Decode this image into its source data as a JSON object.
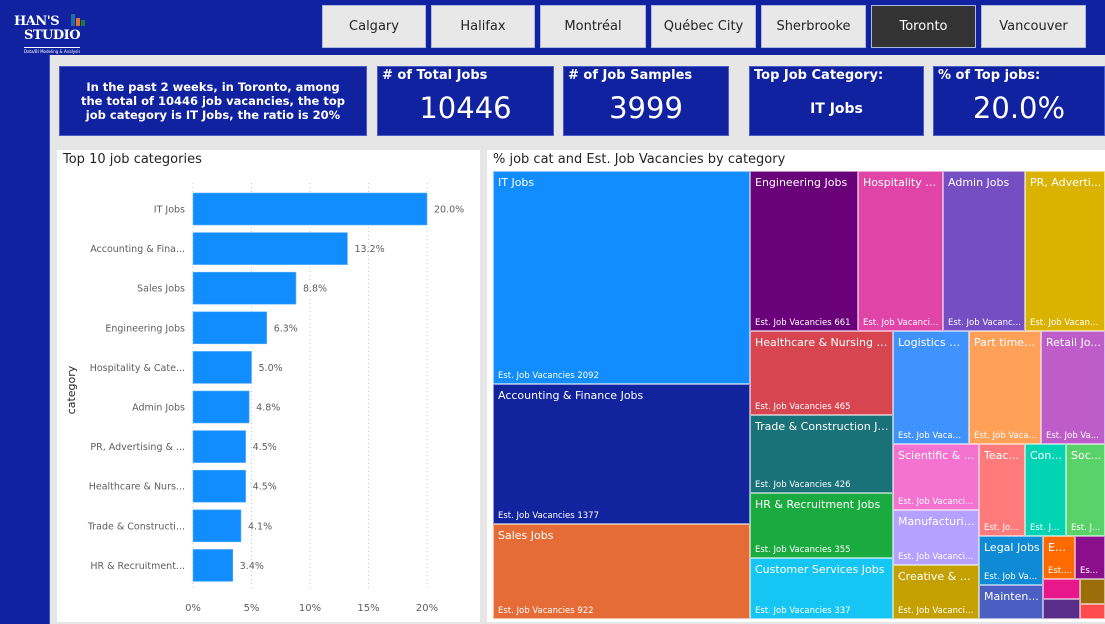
{
  "logo": {
    "line1": "HAN'S",
    "line2": "STUDIO",
    "tagline": "Data/BI Modeling & Analysis"
  },
  "cities": [
    {
      "label": "Calgary",
      "active": false
    },
    {
      "label": "Halifax",
      "active": false
    },
    {
      "label": "Montréal",
      "active": false
    },
    {
      "label": "Québec City",
      "active": false
    },
    {
      "label": "Sherbrooke",
      "active": false
    },
    {
      "label": "Toronto",
      "active": true
    },
    {
      "label": "Vancouver",
      "active": false
    }
  ],
  "kpis": {
    "summary": "In the past 2 weeks, in Toronto, among the total of 10446 job vacancies, the top job category is IT Jobs, the ratio is 20%",
    "total_jobs": {
      "title": "# of Total Jobs",
      "value": "10446"
    },
    "job_samples": {
      "title": "# of Job Samples",
      "value": "3999"
    },
    "top_category": {
      "title": "Top Job Category:",
      "value": "IT Jobs"
    },
    "top_pct": {
      "title": "% of Top jobs:",
      "value": "20.0%"
    }
  },
  "colors": {
    "brand_blue": "#1122a0",
    "bar_blue": "#118dff",
    "active_city": "#333333"
  },
  "chart_data": [
    {
      "type": "bar",
      "orientation": "horizontal",
      "title": "Top 10 job categories",
      "ylabel": "category",
      "xlabel": "",
      "categories": [
        "IT Jobs",
        "Accounting & Fina...",
        "Sales Jobs",
        "Engineering Jobs",
        "Hospitality & Cate...",
        "Admin Jobs",
        "PR, Advertising & ...",
        "Healthcare & Nurs...",
        "Trade & Constructi...",
        "HR & Recruitment..."
      ],
      "values": [
        20.0,
        13.2,
        8.8,
        6.3,
        5.0,
        4.8,
        4.5,
        4.5,
        4.1,
        3.4
      ],
      "value_labels": [
        "20.0%",
        "13.2%",
        "8.8%",
        "6.3%",
        "5.0%",
        "4.8%",
        "4.5%",
        "4.5%",
        "4.1%",
        "3.4%"
      ],
      "xticks": [
        "0%",
        "5%",
        "10%",
        "15%",
        "20%"
      ],
      "xlim": [
        0,
        22
      ],
      "grid": true,
      "color": "#118dff"
    },
    {
      "type": "treemap",
      "title": "% job cat and Est. Job Vacancies by category",
      "value_prefix": "Est. Job Vacancies",
      "tiles": [
        {
          "name": "IT Jobs",
          "value_label": "Est. Job Vacancies 2092",
          "value": 2092,
          "color": "#118dff"
        },
        {
          "name": "Accounting & Finance Jobs",
          "value_label": "Est. Job Vacancies 1377",
          "value": 1377,
          "color": "#12239e"
        },
        {
          "name": "Sales Jobs",
          "value_label": "Est. Job Vacancies 922",
          "value": 922,
          "color": "#e66c37"
        },
        {
          "name": "Engineering Jobs",
          "value_label": "Est. Job Vacancies 661",
          "value": 661,
          "color": "#6b007b"
        },
        {
          "name": "Hospitality &...",
          "value_label": "Est. Job Vacancie...",
          "value": null,
          "color": "#e044a7"
        },
        {
          "name": "Admin Jobs",
          "value_label": "Est. Job Vacanci...",
          "value": null,
          "color": "#744ec2"
        },
        {
          "name": "PR, Adverti...",
          "value_label": "Est. Job Vacanc...",
          "value": null,
          "color": "#d9b300"
        },
        {
          "name": "Healthcare & Nursing Jo...",
          "value_label": "Est. Job Vacancies 465",
          "value": 465,
          "color": "#d64550"
        },
        {
          "name": "Trade & Construction Jo...",
          "value_label": "Est. Job Vacancies 426",
          "value": 426,
          "color": "#197278"
        },
        {
          "name": "HR & Recruitment Jobs",
          "value_label": "Est. Job Vacancies 355",
          "value": 355,
          "color": "#1aab40"
        },
        {
          "name": "Customer Services Jobs",
          "value_label": "Est. Job Vacancies 337",
          "value": 337,
          "color": "#15c6f4"
        },
        {
          "name": "Logistics &...",
          "value_label": "Est. Job Vacan...",
          "value": null,
          "color": "#4092ff"
        },
        {
          "name": "Part time J...",
          "value_label": "Est. Job Vaca...",
          "value": null,
          "color": "#ffa058"
        },
        {
          "name": "Retail Jo...",
          "value_label": "Est. Job Va...",
          "value": null,
          "color": "#be5dc9"
        },
        {
          "name": "Scientific & ...",
          "value_label": "Est. Job Vacancie...",
          "value": null,
          "color": "#f472d0"
        },
        {
          "name": "Teac...",
          "value_label": "Est. Job...",
          "value": null,
          "color": "#ff7b7b"
        },
        {
          "name": "Con...",
          "value_label": "Est. Jo...",
          "value": null,
          "color": "#00d4b4"
        },
        {
          "name": "Soc...",
          "value_label": "Est. J...",
          "value": null,
          "color": "#5ad26a"
        },
        {
          "name": "Manufacturin...",
          "value_label": "Est. Job Vacancie...",
          "value": null,
          "color": "#b5a1ff"
        },
        {
          "name": "Creative & D...",
          "value_label": "Est. Job Vacancie...",
          "value": null,
          "color": "#c4a000"
        },
        {
          "name": "Legal Jobs",
          "value_label": "Est. Job Vac...",
          "value": null,
          "color": "#0f8ad4"
        },
        {
          "name": "En...",
          "value_label": "Est....",
          "value": null,
          "color": "#ff6a00"
        },
        {
          "name": "",
          "value_label": "Es...",
          "value": null,
          "color": "#8b0e8b"
        },
        {
          "name": "Mainten...",
          "value_label": "",
          "value": null,
          "color": "#4b5ec2"
        },
        {
          "name": "",
          "value_label": "",
          "value": null,
          "color": "#e8178c"
        },
        {
          "name": "",
          "value_label": "",
          "value": null,
          "color": "#9b6e0a"
        },
        {
          "name": "",
          "value_label": "",
          "value": null,
          "color": "#5a2d8a"
        },
        {
          "name": "",
          "value_label": "",
          "value": null,
          "color": "#ff4b4b"
        }
      ]
    }
  ]
}
